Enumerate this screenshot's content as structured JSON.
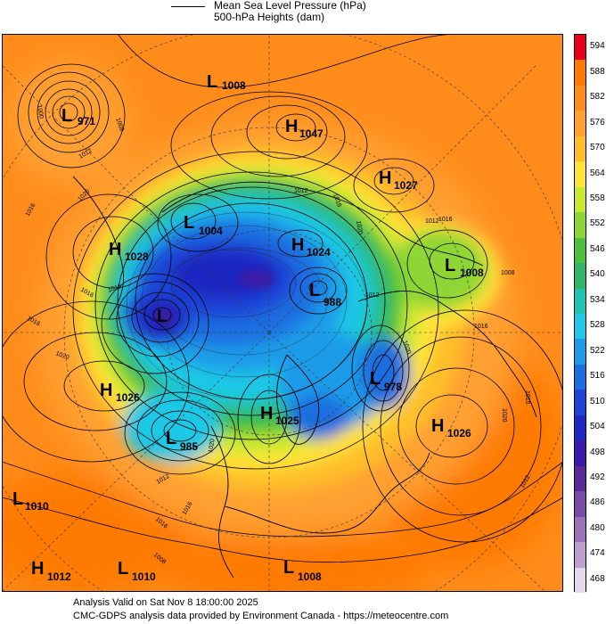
{
  "legend": {
    "line1": "Mean Sea Level Pressure (hPa)",
    "line2": "500-hPa Heights (dam)"
  },
  "footer": {
    "line1": "Analysis Valid on Sat Nov  8 18:00:00 2025",
    "line2": "CMC-GDPS analysis data provided by Environment Canada - https://meteocentre.com"
  },
  "colorbar": {
    "levels": [
      "594",
      "588",
      "582",
      "576",
      "570",
      "564",
      "558",
      "552",
      "546",
      "540",
      "534",
      "528",
      "522",
      "516",
      "510",
      "504",
      "498",
      "492",
      "486",
      "480",
      "474",
      "468"
    ],
    "colors": [
      "#e8001a",
      "#ff7a00",
      "#ff8c1a",
      "#ffa030",
      "#ffbe2a",
      "#ffe338",
      "#c9e830",
      "#8ed634",
      "#4cc23a",
      "#2fb569",
      "#20c4b4",
      "#1fc8e6",
      "#1a9be8",
      "#1a6ee0",
      "#1f45d8",
      "#1c28c0",
      "#3a1aa8",
      "#5a2a98",
      "#7a4aa8",
      "#9a72b8",
      "#c09ed0",
      "#e4d8ee"
    ]
  },
  "systems": [
    {
      "type": "L",
      "value": "1008"
    },
    {
      "type": "H",
      "value": "1047"
    },
    {
      "type": "L",
      "value": "971"
    },
    {
      "type": "H",
      "value": "1027"
    },
    {
      "type": "L",
      "value": "1004"
    },
    {
      "type": "H",
      "value": "1028"
    },
    {
      "type": "H",
      "value": "1024"
    },
    {
      "type": "L",
      "value": "1008"
    },
    {
      "type": "L",
      "value": "988"
    },
    {
      "type": "L",
      "value": ""
    },
    {
      "type": "L",
      "value": "978"
    },
    {
      "type": "H",
      "value": "1026"
    },
    {
      "type": "H",
      "value": "1025"
    },
    {
      "type": "L",
      "value": "985"
    },
    {
      "type": "H",
      "value": "1026"
    },
    {
      "type": "L",
      "value": "1010"
    },
    {
      "type": "H",
      "value": "1012"
    },
    {
      "type": "L",
      "value": "1010"
    },
    {
      "type": "L",
      "value": "1008"
    }
  ],
  "contour_labels": [
    "1008",
    "1000",
    "1012",
    "1016",
    "1020",
    "1016",
    "1012",
    "1016",
    "1020",
    "1012",
    "1016",
    "1012",
    "1016",
    "1008",
    "1016",
    "1012",
    "1020",
    "1016",
    "1020",
    "1020",
    "1012",
    "1016",
    "1016",
    "1008",
    "1016",
    "1020"
  ]
}
